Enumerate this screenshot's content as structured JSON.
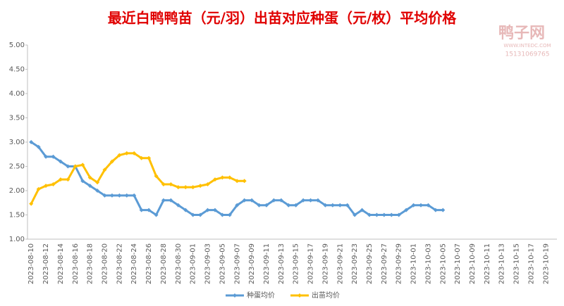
{
  "chart_data": {
    "type": "line",
    "title": "最近白鸭鸭苗（元/羽）出苗对应种蛋（元/枚）平均价格",
    "watermark": [
      "鸭子网",
      "WWW.INTEDC.COM",
      "15131069765"
    ],
    "categories": [
      "2023-08-10",
      null,
      "2023-08-12",
      null,
      "2023-08-14",
      null,
      "2023-08-16",
      null,
      "2023-08-18",
      null,
      "2023-08-20",
      null,
      "2023-08-22",
      null,
      "2023-08-24",
      null,
      "2023-08-26",
      null,
      "2023-08-28",
      null,
      "2023-08-30",
      null,
      "2023-09-01",
      null,
      "2023-09-03",
      null,
      "2023-09-05",
      null,
      "2023-09-07",
      null,
      "2023-09-09",
      null,
      "2023-09-11",
      null,
      "2023-09-13",
      null,
      "2023-09-15",
      null,
      "2023-09-17",
      null,
      "2023-09-19",
      null,
      "2023-09-21",
      null,
      "2023-09-23",
      null,
      "2023-09-25",
      null,
      "2023-09-27",
      null,
      "2023-09-29",
      null,
      "2023-10-01",
      null,
      "2023-10-03",
      null,
      "2023-10-05",
      null,
      "2023-10-07",
      null,
      "2023-10-09",
      null,
      "2023-10-11",
      null,
      "2023-10-13",
      null,
      "2023-10-15",
      null,
      "2023-10-17",
      null,
      "2023-10-19"
    ],
    "series": [
      {
        "name": "种蛋均价",
        "color": "#5b9bd5",
        "values": [
          3.0,
          2.9,
          2.7,
          2.7,
          2.6,
          2.5,
          2.5,
          2.2,
          2.1,
          2.0,
          1.9,
          1.9,
          1.9,
          1.9,
          1.9,
          1.6,
          1.6,
          1.5,
          1.8,
          1.8,
          1.7,
          1.6,
          1.5,
          1.5,
          1.6,
          1.6,
          1.5,
          1.5,
          1.7,
          1.8,
          1.8,
          1.7,
          1.7,
          1.8,
          1.8,
          1.7,
          1.7,
          1.8,
          1.8,
          1.8,
          1.7,
          1.7,
          1.7,
          1.7,
          1.5,
          1.6,
          1.5,
          1.5,
          1.5,
          1.5,
          1.5,
          1.6,
          1.7,
          1.7,
          1.7,
          1.6,
          1.6,
          null,
          null,
          null,
          null,
          null,
          null,
          null,
          null,
          null,
          null,
          null,
          null,
          null,
          null
        ]
      },
      {
        "name": "出苗均价",
        "color": "#ffc000",
        "values": [
          1.73,
          2.03,
          2.1,
          2.13,
          2.23,
          2.23,
          2.5,
          2.53,
          2.27,
          2.17,
          2.43,
          2.6,
          2.73,
          2.77,
          2.77,
          2.67,
          2.67,
          2.3,
          2.13,
          2.13,
          2.07,
          2.07,
          2.07,
          2.1,
          2.13,
          2.23,
          2.27,
          2.27,
          2.2,
          2.2,
          null,
          null,
          null,
          null,
          null,
          null,
          null,
          null,
          null,
          null,
          null,
          null,
          null,
          null,
          null,
          null,
          null,
          null,
          null,
          null,
          null,
          null,
          null,
          null,
          null,
          null,
          null,
          null,
          null,
          null,
          null,
          null,
          null,
          null,
          null,
          null,
          null,
          null,
          null,
          null,
          null
        ]
      }
    ],
    "ylim": [
      1,
      5
    ],
    "yticks": [
      {
        "value": 1,
        "label": "1.00"
      },
      {
        "value": 1.5,
        "label": "1.50"
      },
      {
        "value": 2,
        "label": "2.00"
      },
      {
        "value": 2.5,
        "label": "2.50"
      },
      {
        "value": 3,
        "label": "3.00"
      },
      {
        "value": 3.5,
        "label": "3.50"
      },
      {
        "value": 4,
        "label": "4.00"
      },
      {
        "value": 4.5,
        "label": "4.50"
      },
      {
        "value": 5,
        "label": "5.00"
      }
    ],
    "legend": "bottom"
  }
}
